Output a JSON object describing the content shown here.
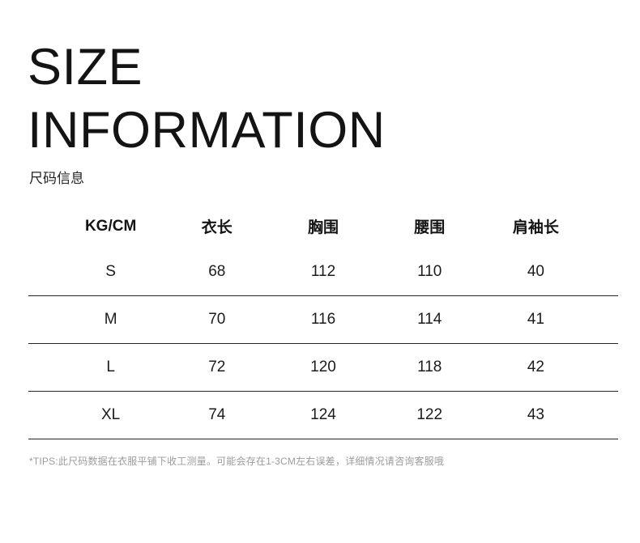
{
  "header": {
    "title_line1": "SIZE",
    "title_line2": "INFORMATION",
    "subtitle": "尺码信息"
  },
  "chart_data": {
    "type": "table",
    "title": "SIZE INFORMATION",
    "subtitle": "尺码信息",
    "columns": [
      "KG/CM",
      "衣长",
      "胸围",
      "腰围",
      "肩袖长"
    ],
    "rows": [
      [
        "S",
        "68",
        "112",
        "110",
        "40"
      ],
      [
        "M",
        "70",
        "116",
        "114",
        "41"
      ],
      [
        "L",
        "72",
        "120",
        "118",
        "42"
      ],
      [
        "XL",
        "74",
        "124",
        "122",
        "43"
      ]
    ]
  },
  "footer": {
    "tips": "*TIPS:此尺码数据在衣服平铺下收工测量。可能会存在1-3CM左右误差，详细情况请咨询客服哦"
  },
  "colors": {
    "text_primary": "#141414",
    "text_tips": "#9c9c9c",
    "row_divider": "#242424",
    "background": "#ffffff"
  }
}
